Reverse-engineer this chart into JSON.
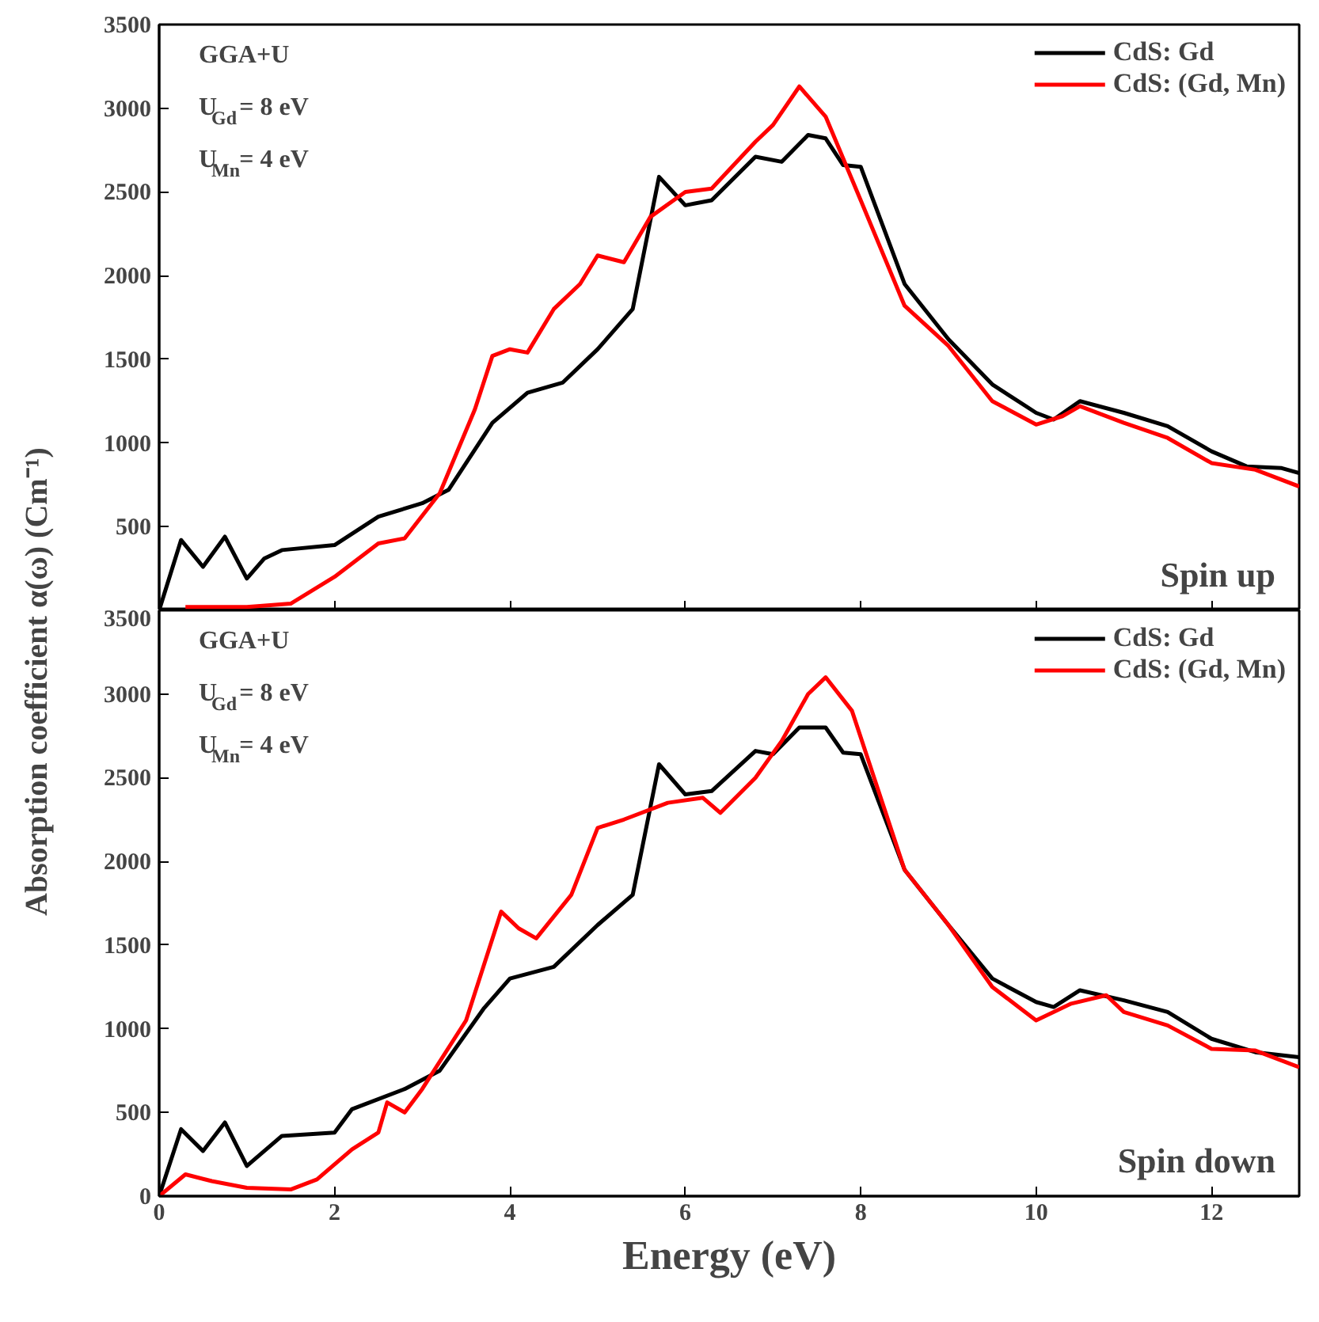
{
  "chart_data": [
    {
      "type": "line",
      "ylabel": "Absorption coefficient α(ω) (Cm⁻¹)",
      "xlim": [
        0,
        13
      ],
      "ylim": [
        0,
        3500
      ],
      "xticks": [
        0,
        2,
        4,
        6,
        8,
        10,
        12
      ],
      "yticks": [
        {
          "value": 0,
          "label": null
        },
        500,
        1000,
        1500,
        2000,
        2500,
        3000,
        3500
      ],
      "tick_labels": "y",
      "legend": "top right",
      "grid": false,
      "annotations": [
        "GGA+U",
        "U$_{Gd}$= 8 eV",
        "U$_{Mn}$= 4 eV",
        "Spin up"
      ],
      "series": [
        {
          "name": "CdS: Gd",
          "color": "#000000",
          "x": [
            0,
            0.25,
            0.5,
            0.75,
            1.0,
            1.2,
            1.4,
            2.0,
            2.5,
            3.0,
            3.3,
            3.8,
            4.2,
            4.6,
            5.0,
            5.4,
            5.7,
            6.0,
            6.3,
            6.8,
            7.1,
            7.4,
            7.6,
            7.8,
            8.0,
            8.5,
            9.0,
            9.5,
            10.0,
            10.2,
            10.5,
            11.0,
            11.5,
            12.0,
            12.4,
            12.8,
            13.0
          ],
          "values": [
            0,
            420,
            260,
            440,
            190,
            310,
            360,
            390,
            560,
            640,
            720,
            1120,
            1300,
            1360,
            1560,
            1800,
            2590,
            2420,
            2450,
            2710,
            2680,
            2840,
            2820,
            2660,
            2650,
            1950,
            1620,
            1350,
            1180,
            1140,
            1250,
            1180,
            1100,
            950,
            860,
            850,
            820
          ]
        },
        {
          "name": "CdS: (Gd, Mn)",
          "color": "#ff0000",
          "x": [
            0.3,
            1.0,
            1.5,
            2.0,
            2.5,
            2.8,
            3.2,
            3.6,
            3.8,
            4.0,
            4.2,
            4.5,
            4.8,
            5.0,
            5.3,
            5.6,
            6.0,
            6.3,
            6.8,
            7.0,
            7.3,
            7.6,
            8.0,
            8.5,
            9.0,
            9.5,
            10.0,
            10.3,
            10.5,
            11.0,
            11.5,
            12.0,
            12.5,
            13.0
          ],
          "values": [
            20,
            20,
            40,
            200,
            400,
            430,
            700,
            1200,
            1520,
            1560,
            1540,
            1800,
            1950,
            2120,
            2080,
            2350,
            2500,
            2520,
            2800,
            2900,
            3130,
            2950,
            2450,
            1820,
            1580,
            1250,
            1110,
            1160,
            1220,
            1120,
            1030,
            880,
            840,
            740
          ]
        }
      ]
    },
    {
      "type": "line",
      "xlabel": "Energy (eV)",
      "xlim": [
        0,
        13
      ],
      "ylim": [
        0,
        3500
      ],
      "xticks": [
        0,
        2,
        4,
        6,
        8,
        10,
        12
      ],
      "yticks": [
        0,
        500,
        1000,
        1500,
        2000,
        2500,
        3000,
        3500
      ],
      "legend": "top right",
      "grid": false,
      "annotations": [
        "GGA+U",
        "U$_{Gd}$= 8 eV",
        "U$_{Mn}$= 4 eV",
        "Spin down"
      ],
      "series": [
        {
          "name": "CdS: Gd",
          "color": "#000000",
          "x": [
            0,
            0.25,
            0.5,
            0.75,
            1.0,
            1.4,
            2.0,
            2.2,
            2.8,
            3.2,
            3.7,
            4.0,
            4.5,
            5.0,
            5.4,
            5.7,
            6.0,
            6.3,
            6.8,
            7.0,
            7.3,
            7.6,
            7.8,
            8.0,
            8.5,
            9.0,
            9.5,
            10.0,
            10.2,
            10.5,
            11.0,
            11.5,
            12.0,
            12.5,
            13.0
          ],
          "values": [
            0,
            400,
            270,
            440,
            180,
            360,
            380,
            520,
            640,
            750,
            1120,
            1300,
            1370,
            1620,
            1800,
            2580,
            2400,
            2420,
            2660,
            2640,
            2800,
            2800,
            2650,
            2640,
            1950,
            1620,
            1300,
            1160,
            1130,
            1230,
            1170,
            1100,
            940,
            860,
            830
          ]
        },
        {
          "name": "CdS: (Gd, Mn)",
          "color": "#ff0000",
          "x": [
            0,
            0.3,
            0.6,
            1.0,
            1.5,
            1.8,
            2.2,
            2.5,
            2.6,
            2.8,
            3.0,
            3.5,
            3.9,
            4.1,
            4.3,
            4.7,
            5.0,
            5.3,
            5.8,
            6.2,
            6.4,
            6.8,
            7.1,
            7.4,
            7.6,
            7.9,
            8.5,
            9.0,
            9.5,
            10.0,
            10.4,
            10.8,
            11.0,
            11.5,
            12.0,
            12.5,
            13.0
          ],
          "values": [
            0,
            130,
            90,
            50,
            40,
            100,
            280,
            380,
            560,
            500,
            640,
            1050,
            1700,
            1600,
            1540,
            1800,
            2200,
            2250,
            2350,
            2380,
            2290,
            2500,
            2720,
            3000,
            3100,
            2900,
            1950,
            1620,
            1250,
            1050,
            1150,
            1200,
            1100,
            1020,
            880,
            870,
            770
          ]
        }
      ]
    }
  ]
}
